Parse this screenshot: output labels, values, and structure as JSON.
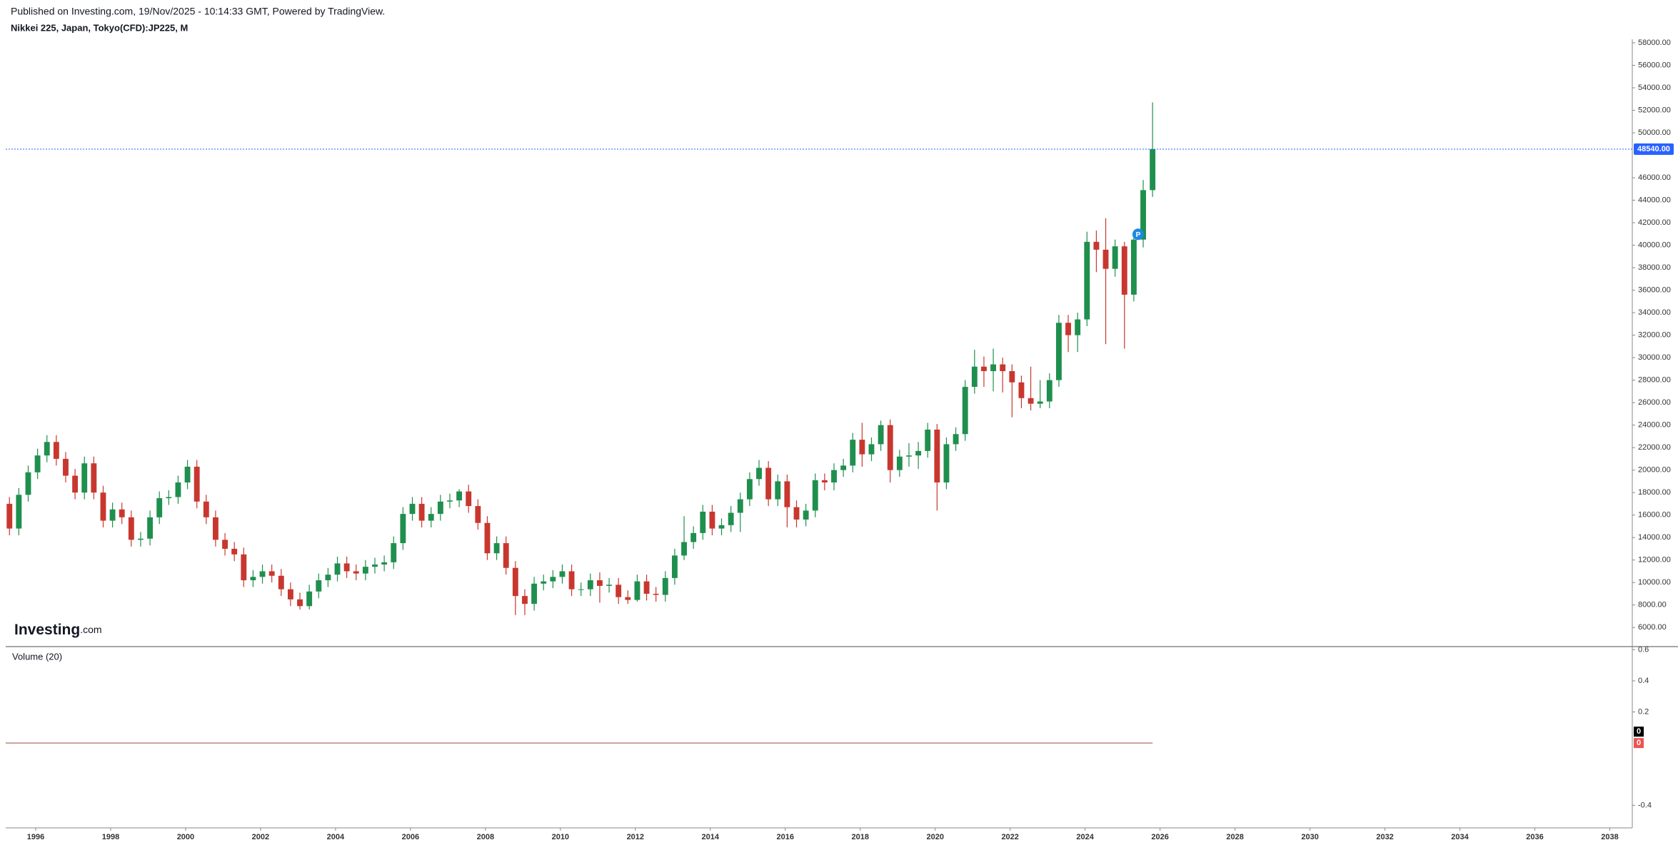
{
  "header": {
    "published": "Published on Investing.com, 19/Nov/2025 - 10:14:33 GMT, Powered by TradingView.",
    "symbol": "Nikkei 225, Japan, Tokyo(CFD):JP225, M"
  },
  "logo": {
    "name": "Investing",
    "suffix": ".com"
  },
  "chart_data": [
    {
      "type": "candlestick",
      "x": [
        1995.3,
        1995.55,
        1995.8,
        1996.05,
        1996.3,
        1996.55,
        1996.8,
        1997.05,
        1997.3,
        1997.55,
        1997.8,
        1998.05,
        1998.3,
        1998.55,
        1998.8,
        1999.05,
        1999.3,
        1999.55,
        1999.8,
        2000.05,
        2000.3,
        2000.55,
        2000.8,
        2001.05,
        2001.3,
        2001.55,
        2001.8,
        2002.05,
        2002.3,
        2002.55,
        2002.8,
        2003.05,
        2003.3,
        2003.55,
        2003.8,
        2004.05,
        2004.3,
        2004.55,
        2004.8,
        2005.05,
        2005.3,
        2005.55,
        2005.8,
        2006.05,
        2006.3,
        2006.55,
        2006.8,
        2007.05,
        2007.3,
        2007.55,
        2007.8,
        2008.05,
        2008.3,
        2008.55,
        2008.8,
        2009.05,
        2009.3,
        2009.55,
        2009.8,
        2010.05,
        2010.3,
        2010.55,
        2010.8,
        2011.05,
        2011.3,
        2011.55,
        2011.8,
        2012.05,
        2012.3,
        2012.55,
        2012.8,
        2013.05,
        2013.3,
        2013.55,
        2013.8,
        2014.05,
        2014.3,
        2014.55,
        2014.8,
        2015.05,
        2015.3,
        2015.55,
        2015.8,
        2016.05,
        2016.3,
        2016.55,
        2016.8,
        2017.05,
        2017.3,
        2017.55,
        2017.8,
        2018.05,
        2018.3,
        2018.55,
        2018.8,
        2019.05,
        2019.3,
        2019.55,
        2019.8,
        2020.05,
        2020.3,
        2020.55,
        2020.8,
        2021.05,
        2021.3,
        2021.55,
        2021.8,
        2022.05,
        2022.3,
        2022.55,
        2022.8,
        2023.05,
        2023.3,
        2023.55,
        2023.8,
        2024.05,
        2024.3,
        2024.55,
        2024.8,
        2025.05,
        2025.3,
        2025.55,
        2025.8
      ],
      "open": [
        17000,
        14800,
        17800,
        19800,
        21300,
        22500,
        21000,
        19500,
        18000,
        20600,
        18000,
        15500,
        16500,
        15800,
        13800,
        13900,
        15800,
        17500,
        17600,
        18900,
        20300,
        17200,
        15800,
        13800,
        13000,
        12500,
        10200,
        10500,
        11000,
        10600,
        9400,
        8500,
        7900,
        9200,
        10200,
        10700,
        11700,
        11000,
        10800,
        11400,
        11600,
        11800,
        13500,
        16100,
        17000,
        15500,
        16100,
        17200,
        17300,
        18100,
        16800,
        15300,
        12600,
        13500,
        11300,
        8800,
        8100,
        9900,
        10100,
        10500,
        11000,
        9400,
        9400,
        10200,
        9700,
        9800,
        8700,
        8450,
        10100,
        9000,
        8900,
        10400,
        12400,
        13600,
        14400,
        16300,
        14800,
        15100,
        16200,
        17400,
        19200,
        20200,
        17400,
        19000,
        16700,
        15600,
        16400,
        19100,
        18900,
        20000,
        20400,
        22700,
        21400,
        22300,
        24000,
        20000,
        21200,
        21300,
        21700,
        23600,
        18900,
        22300,
        23200,
        27400,
        29200,
        28800,
        29400,
        28800,
        27800,
        26400,
        25900,
        26100,
        28000,
        33100,
        32000,
        33400,
        40300,
        39600,
        37900,
        39900,
        35600,
        40500,
        44900
      ],
      "high": [
        17600,
        18400,
        20400,
        21900,
        23100,
        23100,
        21600,
        20100,
        21200,
        21200,
        18600,
        17100,
        17100,
        16400,
        14500,
        16400,
        18100,
        18200,
        19500,
        20900,
        20900,
        17800,
        16400,
        14400,
        13600,
        13100,
        11100,
        11600,
        11600,
        11200,
        10000,
        9100,
        9800,
        10800,
        11300,
        12300,
        12300,
        11600,
        12000,
        12200,
        12400,
        14100,
        16700,
        17600,
        17600,
        16700,
        17800,
        17900,
        18300,
        18700,
        17400,
        15900,
        14100,
        14100,
        11900,
        9400,
        10500,
        10700,
        11100,
        11600,
        11600,
        10000,
        10800,
        10900,
        10400,
        10400,
        9300,
        10700,
        10700,
        9600,
        11000,
        13000,
        15900,
        15000,
        16900,
        16900,
        15700,
        16800,
        18000,
        19800,
        20900,
        20800,
        19600,
        19600,
        17300,
        17000,
        19700,
        19700,
        20600,
        21000,
        23300,
        24200,
        22900,
        24400,
        24500,
        21800,
        22400,
        22500,
        24200,
        24100,
        22900,
        23800,
        28000,
        30700,
        30100,
        30800,
        30000,
        29400,
        28400,
        29200,
        28000,
        28600,
        33800,
        33800,
        34000,
        41200,
        41300,
        42400,
        40500,
        40300,
        41100,
        45800,
        52700
      ],
      "low": [
        14200,
        14200,
        17200,
        19200,
        20700,
        20400,
        18900,
        17400,
        17400,
        17400,
        14900,
        14900,
        15200,
        13200,
        13200,
        13300,
        15200,
        16900,
        17000,
        18300,
        16600,
        15200,
        13200,
        12400,
        11900,
        9600,
        9600,
        9900,
        10000,
        8800,
        7900,
        7600,
        7600,
        8600,
        9600,
        10100,
        10400,
        10200,
        10200,
        10800,
        11000,
        11200,
        12900,
        15500,
        14900,
        14900,
        15500,
        16600,
        16700,
        16200,
        14700,
        12000,
        12000,
        10700,
        7100,
        7100,
        7500,
        9300,
        9500,
        9900,
        8800,
        8800,
        8800,
        8200,
        9100,
        8100,
        8100,
        8300,
        8400,
        8300,
        8300,
        9800,
        12000,
        13000,
        13800,
        14200,
        14200,
        14500,
        14500,
        16800,
        18600,
        16800,
        16800,
        14900,
        14900,
        15000,
        15800,
        18200,
        18200,
        19400,
        19800,
        20300,
        20800,
        21700,
        18900,
        19400,
        20300,
        20100,
        21100,
        16400,
        18300,
        21700,
        22600,
        26800,
        27400,
        27000,
        26900,
        24700,
        25500,
        25300,
        25500,
        25500,
        27400,
        30500,
        30500,
        32800,
        37600,
        31200,
        37200,
        30800,
        35000,
        39800,
        44300
      ],
      "close": [
        14800,
        17800,
        19800,
        21300,
        22500,
        21000,
        19500,
        18000,
        20600,
        18000,
        15500,
        16500,
        15800,
        13800,
        13900,
        15800,
        17500,
        17600,
        18900,
        20300,
        17200,
        15800,
        13800,
        13000,
        12500,
        10200,
        10500,
        11000,
        10600,
        9400,
        8500,
        7900,
        9200,
        10200,
        10700,
        11700,
        11000,
        10800,
        11400,
        11600,
        11800,
        13500,
        16100,
        17000,
        15500,
        16100,
        17200,
        17300,
        18100,
        16800,
        15300,
        12600,
        13500,
        11300,
        8800,
        8100,
        9900,
        10100,
        10500,
        11000,
        9400,
        9400,
        10200,
        9700,
        9800,
        8700,
        8450,
        10100,
        9000,
        8900,
        10400,
        12400,
        13600,
        14400,
        16300,
        14800,
        15100,
        16200,
        17400,
        19200,
        20200,
        17400,
        19000,
        16700,
        15600,
        16400,
        19100,
        18900,
        20000,
        20400,
        22700,
        21400,
        22300,
        24000,
        20000,
        21200,
        21300,
        21700,
        23600,
        18900,
        22300,
        23200,
        27400,
        29200,
        28800,
        29400,
        28800,
        27800,
        26400,
        25900,
        26100,
        28000,
        33100,
        32000,
        33400,
        40300,
        39600,
        37900,
        39900,
        35600,
        40500,
        44900,
        48540
      ],
      "up_color": "#1f8f4e",
      "down_color": "#c8372f",
      "xlim": [
        1995.2,
        2038.6
      ],
      "xticks": [
        1996,
        1998,
        2000,
        2002,
        2004,
        2006,
        2008,
        2010,
        2012,
        2014,
        2016,
        2018,
        2020,
        2022,
        2024,
        2026,
        2028,
        2030,
        2032,
        2034,
        2036,
        2038
      ],
      "ylim": [
        4300,
        58000
      ],
      "yticks": [
        {
          "value": 6000,
          "label": "6000.00"
        },
        {
          "value": 8000,
          "label": "8000.00"
        },
        {
          "value": 10000,
          "label": "10000.00"
        },
        {
          "value": 12000,
          "label": "12000.00"
        },
        {
          "value": 14000,
          "label": "14000.00"
        },
        {
          "value": 16000,
          "label": "16000.00"
        },
        {
          "value": 18000,
          "label": "18000.00"
        },
        {
          "value": 20000,
          "label": "20000.00"
        },
        {
          "value": 22000,
          "label": "22000.00"
        },
        {
          "value": 24000,
          "label": "24000.00"
        },
        {
          "value": 26000,
          "label": "26000.00"
        },
        {
          "value": 28000,
          "label": "28000.00"
        },
        {
          "value": 30000,
          "label": "30000.00"
        },
        {
          "value": 32000,
          "label": "32000.00"
        },
        {
          "value": 34000,
          "label": "34000.00"
        },
        {
          "value": 36000,
          "label": "36000.00"
        },
        {
          "value": 38000,
          "label": "38000.00"
        },
        {
          "value": 40000,
          "label": "40000.00"
        },
        {
          "value": 42000,
          "label": "42000.00"
        },
        {
          "value": 44000,
          "label": "44000.00"
        },
        {
          "value": 46000,
          "label": "46000.00"
        },
        {
          "value": 50000,
          "label": "50000.00"
        },
        {
          "value": 52000,
          "label": "52000.00"
        },
        {
          "value": 54000,
          "label": "54000.00"
        },
        {
          "value": 56000,
          "label": "56000.00"
        },
        {
          "value": 58000,
          "label": "58000.00"
        }
      ],
      "price_line": {
        "value": 48540,
        "label": "48540.00",
        "color": "#2962ff"
      },
      "badge": "P"
    },
    {
      "type": "line",
      "title": "Volume (20)",
      "x": [
        1995.2,
        2025.8
      ],
      "series": [
        {
          "color": "#000000",
          "values": [
            0,
            0
          ]
        },
        {
          "color": "#ef5350",
          "values": [
            0,
            0
          ]
        }
      ],
      "xlim": [
        1995.2,
        2038.6
      ],
      "ylim": [
        -0.545,
        0.62
      ],
      "yticks": [
        0.6,
        0.4,
        0.2,
        -0.4
      ]
    }
  ]
}
